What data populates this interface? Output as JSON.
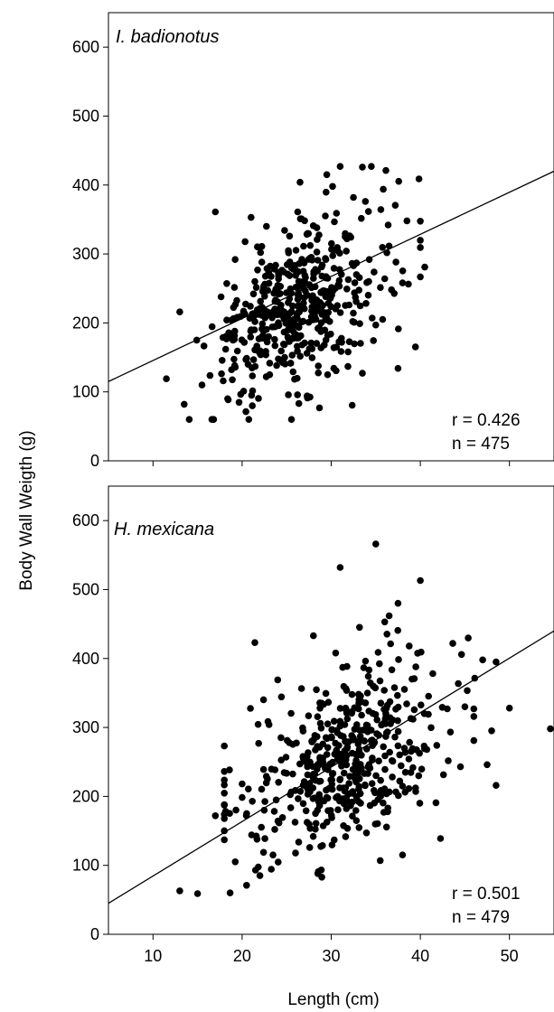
{
  "colors": {
    "points": "#000000",
    "line": "#000000",
    "frame": "#000000",
    "background": "#ffffff"
  },
  "chart_data": {
    "type": "scatter",
    "ylabel": "Body Wall Weigth (g)",
    "xlabel": "Length (cm)",
    "xlim": [
      5,
      55
    ],
    "xticks": [
      "10",
      "20",
      "30",
      "40",
      "50"
    ],
    "grid": false,
    "panels": [
      {
        "title": "I. badionotus",
        "ylim": [
          0,
          650
        ],
        "yticks": [
          "0",
          "100",
          "200",
          "300",
          "400",
          "500",
          "600"
        ],
        "r_label": "r = 0.426",
        "n_label": "n = 475",
        "fit_line": {
          "x": [
            5,
            55
          ],
          "y": [
            115,
            420
          ]
        },
        "seed": 1234,
        "clusters": [
          {
            "count": 330,
            "x_mean": 25,
            "x_sd": 4.2,
            "slope": 5.2,
            "intercept": 85,
            "resid_sd": 50,
            "x_min": 12,
            "x_max": 37
          },
          {
            "count": 145,
            "x_mean": 30,
            "x_sd": 5.0,
            "slope": 5.5,
            "intercept": 80,
            "resid_sd": 68,
            "x_min": 12,
            "x_max": 40
          }
        ],
        "points": [
          {
            "x": 13.5,
            "y": 82
          },
          {
            "x": 11.5,
            "y": 119
          },
          {
            "x": 13,
            "y": 216
          },
          {
            "x": 17,
            "y": 361
          },
          {
            "x": 33.5,
            "y": 426
          },
          {
            "x": 31,
            "y": 427
          },
          {
            "x": 34.5,
            "y": 427
          },
          {
            "x": 26.5,
            "y": 404
          },
          {
            "x": 29.5,
            "y": 415
          },
          {
            "x": 38.5,
            "y": 348
          },
          {
            "x": 40.5,
            "y": 281
          },
          {
            "x": 37.5,
            "y": 134
          },
          {
            "x": 33.5,
            "y": 127
          },
          {
            "x": 35,
            "y": 197
          },
          {
            "x": 38,
            "y": 258
          },
          {
            "x": 36,
            "y": 264
          },
          {
            "x": 15.5,
            "y": 110
          },
          {
            "x": 21,
            "y": 353
          }
        ]
      },
      {
        "title": "H. mexicana",
        "ylim": [
          0,
          650
        ],
        "yticks": [
          "0",
          "100",
          "200",
          "300",
          "400",
          "500",
          "600"
        ],
        "r_label": "r = 0.501",
        "n_label": "n = 479",
        "fit_line": {
          "x": [
            5,
            55
          ],
          "y": [
            45,
            440
          ]
        },
        "seed": 98765,
        "clusters": [
          {
            "count": 330,
            "x_mean": 32,
            "x_sd": 4.8,
            "slope": 6.3,
            "intercept": 55,
            "resid_sd": 62,
            "x_min": 20,
            "x_max": 46
          },
          {
            "count": 149,
            "x_mean": 30,
            "x_sd": 6.5,
            "slope": 6.0,
            "intercept": 70,
            "resid_sd": 75,
            "x_min": 18,
            "x_max": 48
          }
        ],
        "points": [
          {
            "x": 13,
            "y": 63
          },
          {
            "x": 15,
            "y": 59
          },
          {
            "x": 17,
            "y": 172
          },
          {
            "x": 20,
            "y": 218
          },
          {
            "x": 20.5,
            "y": 71
          },
          {
            "x": 24,
            "y": 369
          },
          {
            "x": 31,
            "y": 532
          },
          {
            "x": 35,
            "y": 566
          },
          {
            "x": 40,
            "y": 513
          },
          {
            "x": 37.5,
            "y": 480
          },
          {
            "x": 36.5,
            "y": 462
          },
          {
            "x": 36,
            "y": 453
          },
          {
            "x": 55,
            "y": 298
          },
          {
            "x": 50,
            "y": 328
          },
          {
            "x": 48.5,
            "y": 395
          },
          {
            "x": 47,
            "y": 398
          },
          {
            "x": 48.5,
            "y": 216
          },
          {
            "x": 47.5,
            "y": 246
          },
          {
            "x": 46,
            "y": 281
          },
          {
            "x": 44.5,
            "y": 243
          },
          {
            "x": 45,
            "y": 330
          },
          {
            "x": 35.5,
            "y": 107
          },
          {
            "x": 38,
            "y": 115
          },
          {
            "x": 28.5,
            "y": 88
          },
          {
            "x": 22,
            "y": 85
          },
          {
            "x": 21.5,
            "y": 93
          },
          {
            "x": 28,
            "y": 433
          },
          {
            "x": 30.5,
            "y": 408
          }
        ]
      }
    ]
  }
}
